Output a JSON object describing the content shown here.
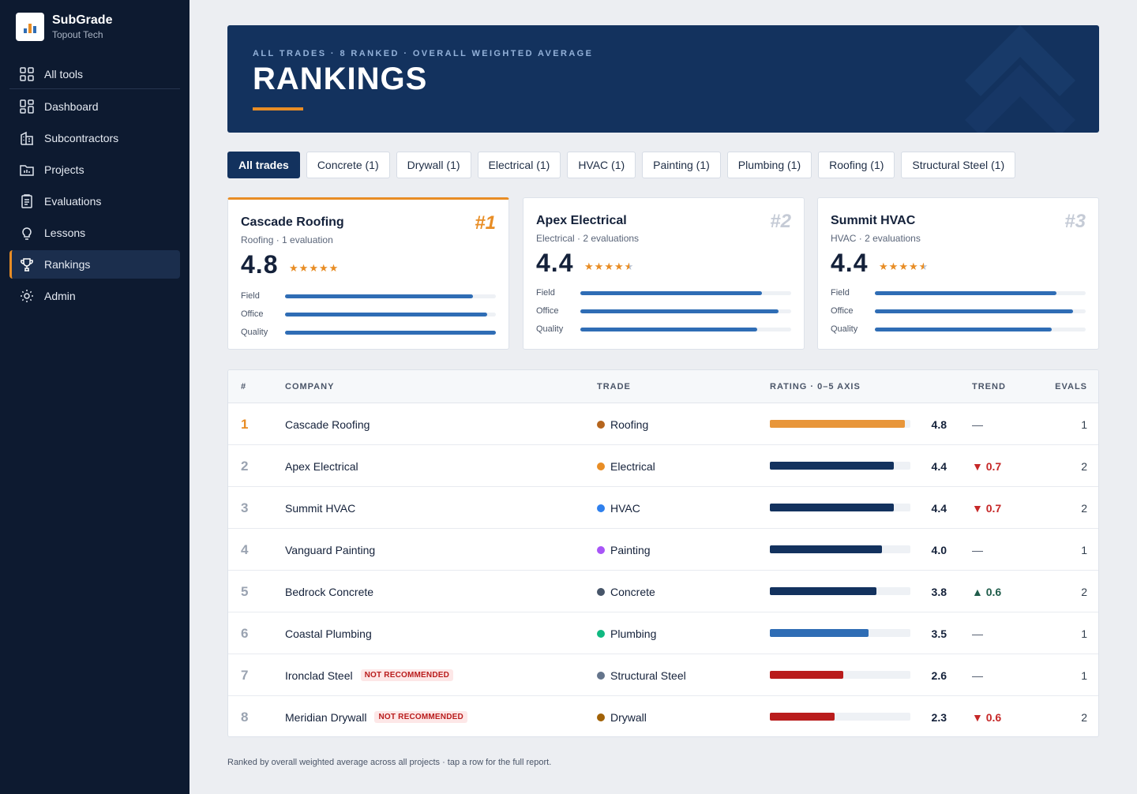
{
  "brand": {
    "name": "SubGrade",
    "org": "Topout Tech"
  },
  "nav": [
    {
      "label": "All tools",
      "icon": "grid-icon"
    },
    {
      "label": "Dashboard",
      "icon": "dashboard-icon"
    },
    {
      "label": "Subcontractors",
      "icon": "building-icon"
    },
    {
      "label": "Projects",
      "icon": "folder-icon"
    },
    {
      "label": "Evaluations",
      "icon": "clipboard-icon"
    },
    {
      "label": "Lessons",
      "icon": "lightbulb-icon"
    },
    {
      "label": "Rankings",
      "icon": "trophy-icon",
      "active": true
    },
    {
      "label": "Admin",
      "icon": "gear-icon"
    }
  ],
  "hero": {
    "kicker": "ALL TRADES · 8 RANKED · OVERALL WEIGHTED AVERAGE",
    "title": "RANKINGS"
  },
  "tabs": [
    "All trades",
    "Concrete (1)",
    "Drywall (1)",
    "Electrical (1)",
    "HVAC (1)",
    "Painting (1)",
    "Plumbing (1)",
    "Roofing (1)",
    "Structural Steel (1)"
  ],
  "active_tab": "All trades",
  "podium": [
    {
      "rank": "#1",
      "name": "Cascade Roofing",
      "meta": "Roofing · 1 evaluation",
      "score": "4.8",
      "stars": 5,
      "subs": [
        {
          "label": "Field",
          "value": 0.89
        },
        {
          "label": "Office",
          "value": 0.96
        },
        {
          "label": "Quality",
          "value": 1.0
        }
      ]
    },
    {
      "rank": "#2",
      "name": "Apex Electrical",
      "meta": "Electrical · 2 evaluations",
      "score": "4.4",
      "stars": 4.5,
      "subs": [
        {
          "label": "Field",
          "value": 0.86
        },
        {
          "label": "Office",
          "value": 0.94
        },
        {
          "label": "Quality",
          "value": 0.84
        }
      ]
    },
    {
      "rank": "#3",
      "name": "Summit HVAC",
      "meta": "HVAC · 2 evaluations",
      "score": "4.4",
      "stars": 4.5,
      "subs": [
        {
          "label": "Field",
          "value": 0.86
        },
        {
          "label": "Office",
          "value": 0.94
        },
        {
          "label": "Quality",
          "value": 0.84
        }
      ]
    }
  ],
  "table": {
    "headers": {
      "rank": "#",
      "company": "COMPANY",
      "trade": "TRADE",
      "rating": "RATING · 0–5 AXIS",
      "trend": "TREND",
      "evals": "EVALS"
    },
    "rows": [
      {
        "rank": "1",
        "company": "Cascade Roofing",
        "badge": "",
        "trade": "Roofing",
        "trade_color": "#b5651d",
        "rating": 4.8,
        "score": "4.8",
        "bar_color": "#e8963a",
        "trend": "—",
        "trend_dir": "flat",
        "evals": "1"
      },
      {
        "rank": "2",
        "company": "Apex Electrical",
        "badge": "",
        "trade": "Electrical",
        "trade_color": "#e88d25",
        "rating": 4.4,
        "score": "4.4",
        "bar_color": "#13325e",
        "trend": "▼ 0.7",
        "trend_dir": "down",
        "evals": "2"
      },
      {
        "rank": "3",
        "company": "Summit HVAC",
        "badge": "",
        "trade": "HVAC",
        "trade_color": "#2f80ed",
        "rating": 4.4,
        "score": "4.4",
        "bar_color": "#13325e",
        "trend": "▼ 0.7",
        "trend_dir": "down",
        "evals": "2"
      },
      {
        "rank": "4",
        "company": "Vanguard Painting",
        "badge": "",
        "trade": "Painting",
        "trade_color": "#a855f7",
        "rating": 4.0,
        "score": "4.0",
        "bar_color": "#13325e",
        "trend": "—",
        "trend_dir": "flat",
        "evals": "1"
      },
      {
        "rank": "5",
        "company": "Bedrock Concrete",
        "badge": "",
        "trade": "Concrete",
        "trade_color": "#475569",
        "rating": 3.8,
        "score": "3.8",
        "bar_color": "#13325e",
        "trend": "▲ 0.6",
        "trend_dir": "up",
        "evals": "2"
      },
      {
        "rank": "6",
        "company": "Coastal Plumbing",
        "badge": "",
        "trade": "Plumbing",
        "trade_color": "#10b981",
        "rating": 3.5,
        "score": "3.5",
        "bar_color": "#2f6db5",
        "trend": "—",
        "trend_dir": "flat",
        "evals": "1"
      },
      {
        "rank": "7",
        "company": "Ironclad Steel",
        "badge": "NOT RECOMMENDED",
        "trade": "Structural Steel",
        "trade_color": "#64748b",
        "rating": 2.6,
        "score": "2.6",
        "bar_color": "#b91c1c",
        "trend": "—",
        "trend_dir": "flat",
        "evals": "1"
      },
      {
        "rank": "8",
        "company": "Meridian Drywall",
        "badge": "NOT RECOMMENDED",
        "trade": "Drywall",
        "trade_color": "#a16207",
        "rating": 2.3,
        "score": "2.3",
        "bar_color": "#b91c1c",
        "trend": "▼ 0.6",
        "trend_dir": "down",
        "evals": "2"
      }
    ]
  },
  "footnote": "Ranked by overall weighted average across all projects · tap a row for the full report.",
  "colors": {
    "accent": "#e88d25",
    "navy": "#13325e",
    "sidebar": "#0d1a30"
  }
}
